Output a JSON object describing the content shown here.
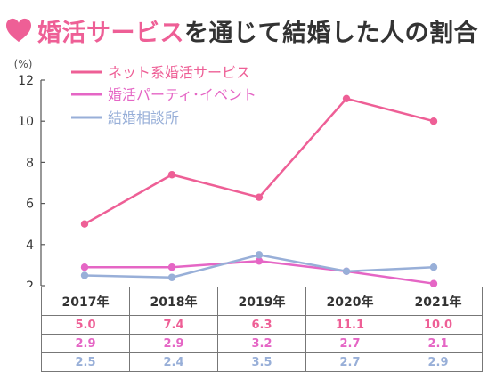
{
  "title": {
    "accent": "婚活サービス",
    "rest": "を通じて結婚した人の割合"
  },
  "chart_data": {
    "type": "line",
    "ylabel": "(%)",
    "ylim": [
      2,
      12
    ],
    "yticks": [
      "2",
      "4",
      "6",
      "8",
      "10",
      "12"
    ],
    "categories": [
      "2017年",
      "2018年",
      "2019年",
      "2020年",
      "2021年"
    ],
    "grid": false,
    "legend_position": "top-left",
    "series": [
      {
        "name": "ネット系婚活サービス",
        "color": "#ee5f96",
        "values": [
          5.0,
          7.4,
          6.3,
          11.1,
          10.0
        ],
        "labels": [
          "5.0",
          "7.4",
          "6.3",
          "11.1",
          "10.0"
        ]
      },
      {
        "name": "婚活パーティ･イベント",
        "color": "#e566c5",
        "values": [
          2.9,
          2.9,
          3.2,
          2.7,
          2.1
        ],
        "labels": [
          "2.9",
          "2.9",
          "3.2",
          "2.7",
          "2.1"
        ]
      },
      {
        "name": "結婚相談所",
        "color": "#98afd8",
        "values": [
          2.5,
          2.4,
          3.5,
          2.7,
          2.9
        ],
        "labels": [
          "2.5",
          "2.4",
          "3.5",
          "2.7",
          "2.9"
        ]
      }
    ]
  }
}
